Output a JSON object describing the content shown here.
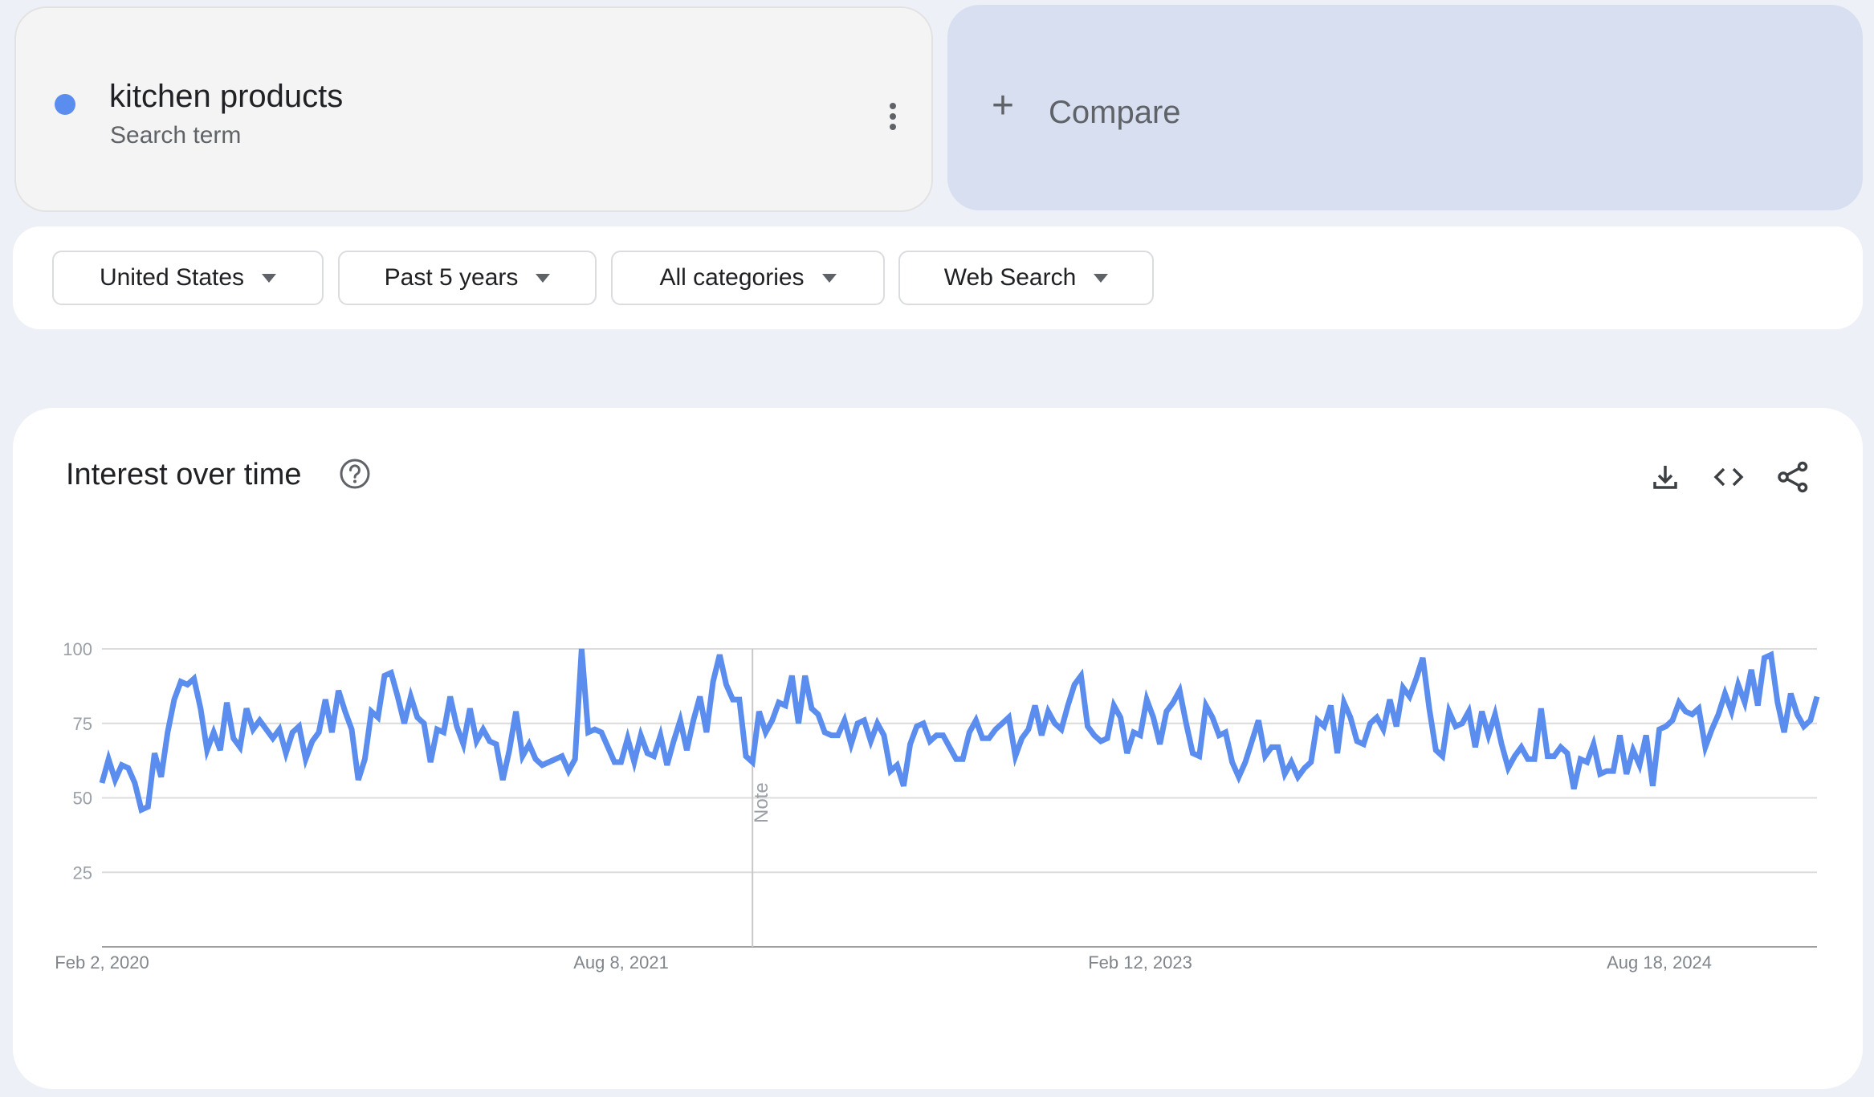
{
  "search_term": {
    "name": "kitchen products",
    "subtitle": "Search term",
    "color": "#5b8def"
  },
  "compare": {
    "label": "Compare"
  },
  "filters": [
    {
      "label": "United States"
    },
    {
      "label": "Past 5 years"
    },
    {
      "label": "All categories"
    },
    {
      "label": "Web Search"
    }
  ],
  "chart_card": {
    "title": "Interest over time",
    "icons": [
      "help-icon",
      "download-icon",
      "embed-code-icon",
      "share-icon"
    ]
  },
  "chart_data": {
    "type": "line",
    "title": "",
    "xlabel": "",
    "ylabel": "",
    "ylim": [
      0,
      100
    ],
    "y_ticks": [
      25,
      50,
      75,
      100
    ],
    "x_start": "Feb 2, 2020",
    "x_interval": "weekly",
    "x_tick_labels": [
      {
        "label": "Feb 2, 2020",
        "week": 0
      },
      {
        "label": "Aug 8, 2021",
        "week": 79
      },
      {
        "label": "Feb 12, 2023",
        "week": 158
      },
      {
        "label": "Aug 18, 2024",
        "week": 237
      }
    ],
    "note": {
      "label": "Note",
      "week": 99
    },
    "grid": true,
    "series_color": "#5b8def",
    "series": [
      {
        "name": "kitchen products",
        "values": [
          55,
          63,
          56,
          61,
          60,
          55,
          46,
          47,
          65,
          57,
          72,
          83,
          89,
          88,
          90,
          80,
          66,
          72,
          66,
          82,
          70,
          67,
          80,
          73,
          76,
          73,
          70,
          73,
          65,
          72,
          74,
          63,
          69,
          72,
          83,
          72,
          86,
          79,
          73,
          56,
          63,
          79,
          77,
          91,
          92,
          84,
          75,
          84,
          77,
          75,
          62,
          73,
          72,
          84,
          74,
          68,
          80,
          69,
          73,
          69,
          68,
          56,
          66,
          79,
          64,
          68,
          63,
          61,
          62,
          63,
          64,
          59,
          63,
          100,
          72,
          73,
          72,
          67,
          62,
          62,
          70,
          62,
          71,
          65,
          64,
          71,
          61,
          69,
          76,
          66,
          76,
          84,
          72,
          89,
          98,
          88,
          83,
          83,
          64,
          62,
          79,
          72,
          76,
          82,
          81,
          91,
          75,
          91,
          80,
          78,
          72,
          71,
          71,
          76,
          68,
          75,
          76,
          69,
          75,
          71,
          59,
          61,
          54,
          68,
          74,
          75,
          69,
          71,
          71,
          67,
          63,
          63,
          72,
          76,
          70,
          70,
          73,
          75,
          77,
          64,
          70,
          73,
          81,
          71,
          79,
          75,
          73,
          81,
          88,
          91,
          74,
          71,
          69,
          70,
          81,
          77,
          65,
          72,
          71,
          83,
          77,
          68,
          79,
          82,
          86,
          75,
          65,
          64,
          81,
          77,
          71,
          72,
          62,
          57,
          62,
          69,
          76,
          64,
          67,
          67,
          58,
          62,
          57,
          60,
          62,
          76,
          74,
          81,
          65,
          82,
          77,
          69,
          68,
          75,
          77,
          73,
          83,
          74,
          87,
          84,
          90,
          97,
          80,
          66,
          64,
          79,
          74,
          75,
          79,
          67,
          79,
          71,
          78,
          68,
          60,
          64,
          67,
          63,
          63,
          80,
          64,
          64,
          67,
          65,
          53,
          63,
          62,
          68,
          58,
          59,
          59,
          71,
          58,
          66,
          61,
          71,
          54,
          73,
          74,
          76,
          82,
          79,
          78,
          80,
          67,
          73,
          78,
          85,
          79,
          88,
          82,
          93,
          81,
          97,
          98,
          82,
          72,
          85,
          78,
          74,
          76,
          84
        ]
      }
    ]
  }
}
